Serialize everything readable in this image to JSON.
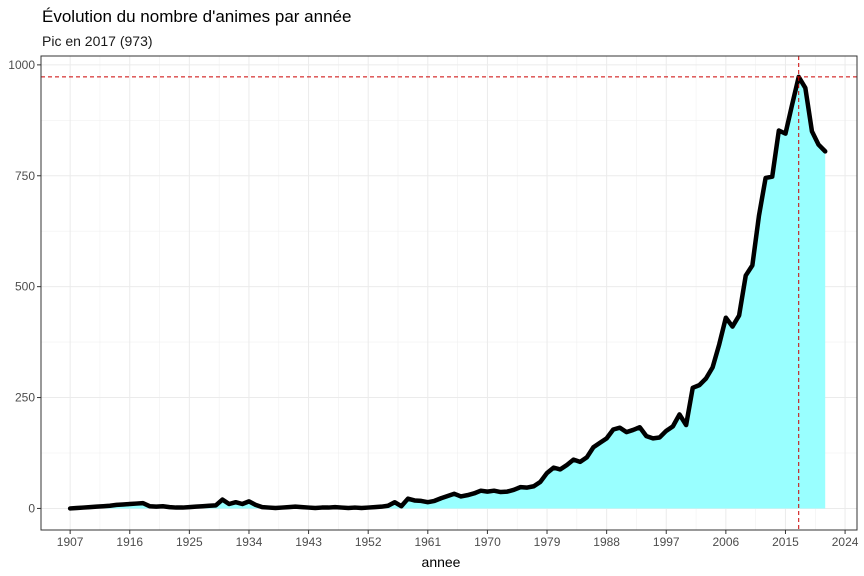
{
  "chart_data": {
    "type": "area",
    "title": "Évolution du nombre d'animes par année",
    "subtitle": "Pic en 2017 (973)",
    "xlabel": "annee",
    "ylabel": "",
    "xlim": [
      1902.6,
      2025.8
    ],
    "ylim": [
      -48.6,
      1020
    ],
    "x_ticks": [
      1907,
      1916,
      1925,
      1934,
      1943,
      1952,
      1961,
      1970,
      1979,
      1988,
      1997,
      2006,
      2015,
      2024
    ],
    "y_ticks": [
      0,
      250,
      500,
      750,
      1000
    ],
    "grid": true,
    "legend": "none",
    "colors": {
      "fill": "#99FFFF",
      "line": "#000000",
      "reference": "#CC0000"
    },
    "reference_lines": {
      "x": 2017,
      "y": 973
    },
    "series": [
      {
        "x": [
          1907,
          1908,
          1909,
          1910,
          1911,
          1912,
          1913,
          1914,
          1915,
          1916,
          1917,
          1918,
          1919,
          1920,
          1921,
          1922,
          1923,
          1924,
          1925,
          1926,
          1927,
          1928,
          1929,
          1930,
          1931,
          1932,
          1933,
          1934,
          1935,
          1936,
          1937,
          1938,
          1939,
          1940,
          1941,
          1942,
          1943,
          1944,
          1945,
          1946,
          1947,
          1948,
          1949,
          1950,
          1951,
          1952,
          1953,
          1954,
          1955,
          1956,
          1957,
          1958,
          1959,
          1960,
          1961,
          1962,
          1963,
          1964,
          1965,
          1966,
          1967,
          1968,
          1969,
          1970,
          1971,
          1972,
          1973,
          1974,
          1975,
          1976,
          1977,
          1978,
          1979,
          1980,
          1981,
          1982,
          1983,
          1984,
          1985,
          1986,
          1987,
          1988,
          1989,
          1990,
          1991,
          1992,
          1993,
          1994,
          1995,
          1996,
          1997,
          1998,
          1999,
          2000,
          2001,
          2002,
          2003,
          2004,
          2005,
          2006,
          2007,
          2008,
          2009,
          2010,
          2011,
          2012,
          2013,
          2014,
          2015,
          2016,
          2017,
          2018,
          2019,
          2020,
          2021
        ],
        "y": [
          0,
          1,
          2,
          3,
          4,
          5,
          6,
          8,
          9,
          10,
          11,
          12,
          5,
          4,
          5,
          3,
          2,
          2,
          3,
          4,
          5,
          6,
          7,
          20,
          10,
          14,
          10,
          16,
          8,
          3,
          2,
          1,
          2,
          3,
          4,
          3,
          2,
          1,
          2,
          2,
          3,
          2,
          1,
          2,
          1,
          2,
          3,
          4,
          6,
          14,
          5,
          22,
          18,
          17,
          14,
          17,
          23,
          28,
          33,
          27,
          30,
          34,
          40,
          38,
          40,
          37,
          38,
          42,
          48,
          47,
          50,
          60,
          80,
          92,
          88,
          98,
          110,
          105,
          115,
          138,
          148,
          158,
          178,
          182,
          172,
          177,
          183,
          163,
          158,
          160,
          175,
          185,
          212,
          188,
          272,
          278,
          293,
          318,
          370,
          430,
          410,
          435,
          525,
          548,
          660,
          745,
          748,
          852,
          845,
          910,
          973,
          948,
          850,
          820,
          805
        ]
      }
    ]
  }
}
